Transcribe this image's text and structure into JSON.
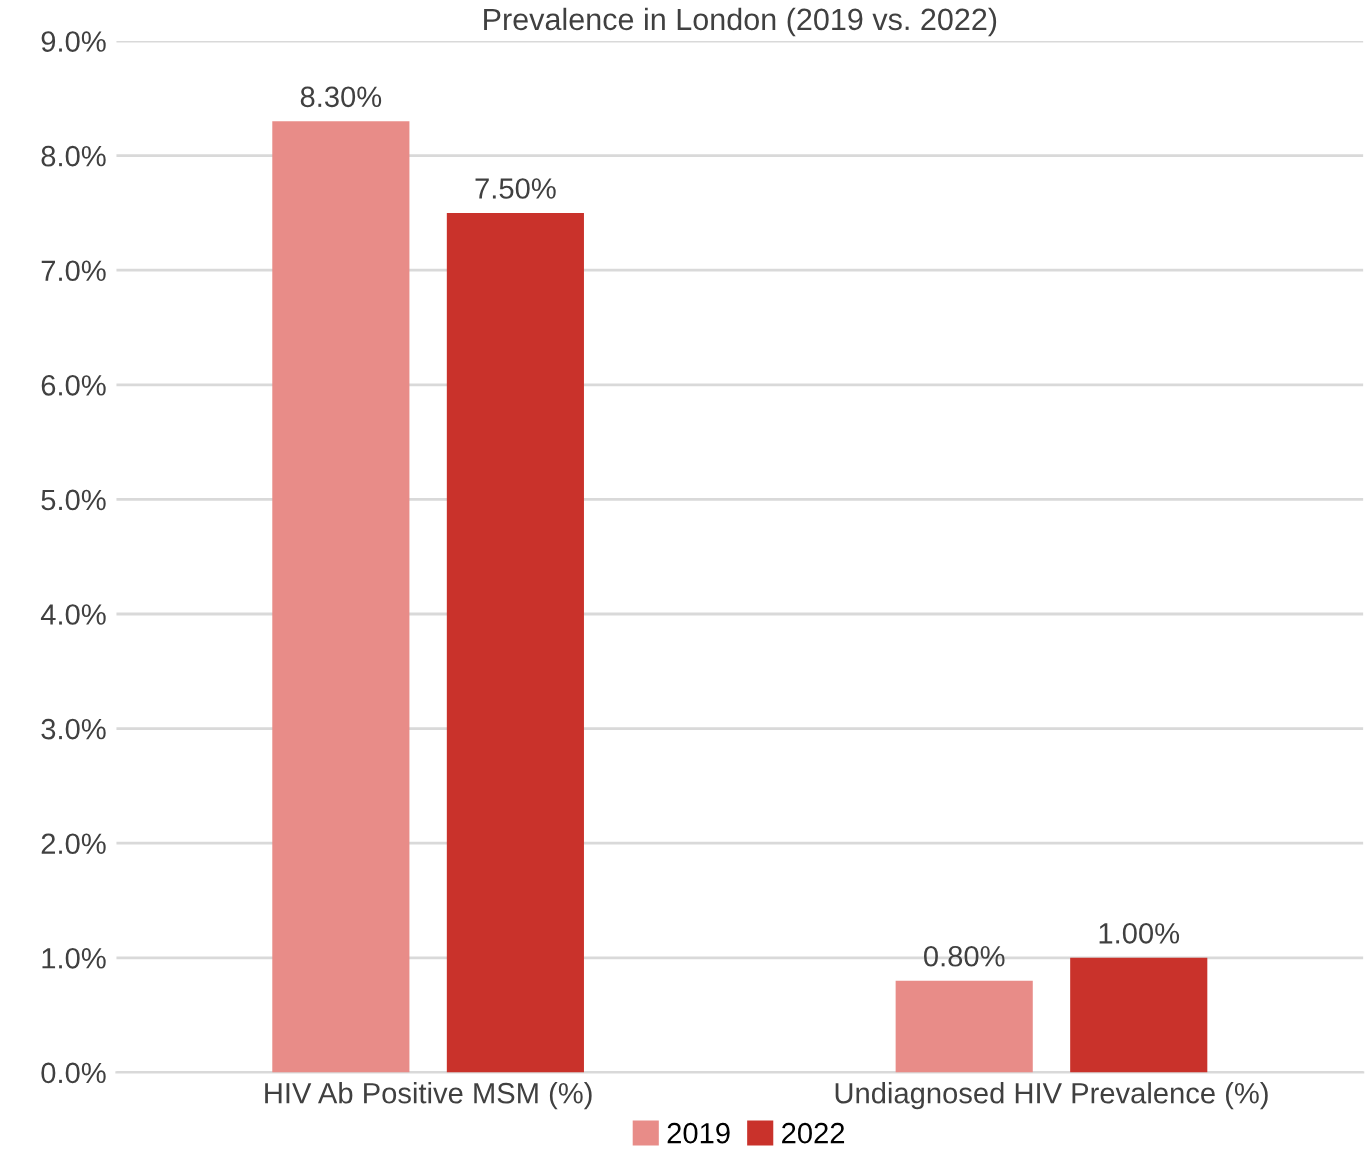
{
  "chart_data": {
    "type": "bar",
    "title": "Prevalence in London (2019 vs. 2022)",
    "categories": [
      "HIV Ab Positive MSM (%)",
      "Undiagnosed HIV Prevalence (%)"
    ],
    "series": [
      {
        "name": "2019",
        "color": "#e88c88",
        "values": [
          8.3,
          0.8
        ],
        "value_labels": [
          "8.30%",
          "0.80%"
        ]
      },
      {
        "name": "2022",
        "color": "#c9322b",
        "values": [
          7.5,
          1.0
        ],
        "value_labels": [
          "7.50%",
          "1.00%"
        ]
      }
    ],
    "ylim": [
      0,
      9
    ],
    "yticks": [
      {
        "value": 0,
        "label": "0.0%"
      },
      {
        "value": 1,
        "label": "1.0%"
      },
      {
        "value": 2,
        "label": "2.0%"
      },
      {
        "value": 3,
        "label": "3.0%"
      },
      {
        "value": 4,
        "label": "4.0%"
      },
      {
        "value": 5,
        "label": "5.0%"
      },
      {
        "value": 6,
        "label": "6.0%"
      },
      {
        "value": 7,
        "label": "7.0%"
      },
      {
        "value": 8,
        "label": "8.0%"
      },
      {
        "value": 9,
        "label": "9.0%"
      }
    ],
    "grid": "y",
    "legend": "bottom"
  }
}
